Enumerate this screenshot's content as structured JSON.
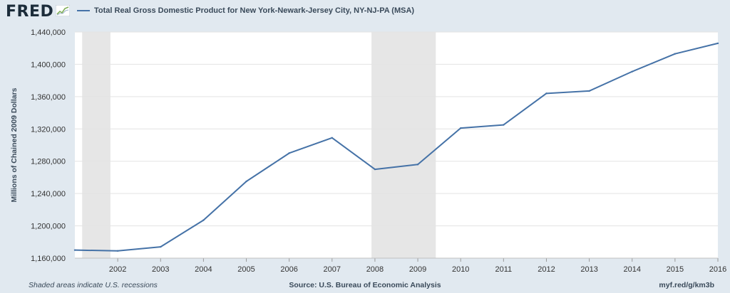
{
  "header": {
    "logo_text": "FRED",
    "logo_icon": "sparkline-icon"
  },
  "chart_data": {
    "type": "line",
    "title": "",
    "xlabel": "",
    "ylabel": "Millions of Chained 2009 Dollars",
    "ylim": [
      1160000,
      1440000
    ],
    "yticks": [
      1160000,
      1200000,
      1240000,
      1280000,
      1320000,
      1360000,
      1400000,
      1440000
    ],
    "ytick_labels": [
      "1,160,000",
      "1,200,000",
      "1,240,000",
      "1,280,000",
      "1,320,000",
      "1,360,000",
      "1,400,000",
      "1,440,000"
    ],
    "xlim": [
      2001,
      2016
    ],
    "xticks": [
      2002,
      2003,
      2004,
      2005,
      2006,
      2007,
      2008,
      2009,
      2010,
      2011,
      2012,
      2013,
      2014,
      2015,
      2016
    ],
    "xtick_labels": [
      "2002",
      "2003",
      "2004",
      "2005",
      "2006",
      "2007",
      "2008",
      "2009",
      "2010",
      "2011",
      "2012",
      "2013",
      "2014",
      "2015",
      "2016"
    ],
    "grid": "horizontal",
    "legend_position": "top-left",
    "series": [
      {
        "name": "Total Real Gross Domestic Product for New York-Newark-Jersey City, NY-NJ-PA (MSA)",
        "color": "#4572a7",
        "x": [
          2001,
          2002,
          2003,
          2004,
          2005,
          2006,
          2007,
          2008,
          2009,
          2010,
          2011,
          2012,
          2013,
          2014,
          2015,
          2016
        ],
        "y": [
          1170000,
          1169000,
          1174000,
          1207000,
          1255000,
          1290000,
          1309000,
          1270000,
          1276000,
          1321000,
          1325000,
          1364000,
          1367000,
          1391000,
          1413000,
          1426000
        ]
      }
    ],
    "recessions": [
      {
        "start": 2001.17,
        "end": 2001.83
      },
      {
        "start": 2007.92,
        "end": 2009.42
      }
    ],
    "recession_color": "#e6e6e6"
  },
  "footer": {
    "note": "Shaded areas indicate U.S. recessions",
    "source": "Source: U.S. Bureau of Economic Analysis",
    "url": "myf.red/g/km3b"
  }
}
